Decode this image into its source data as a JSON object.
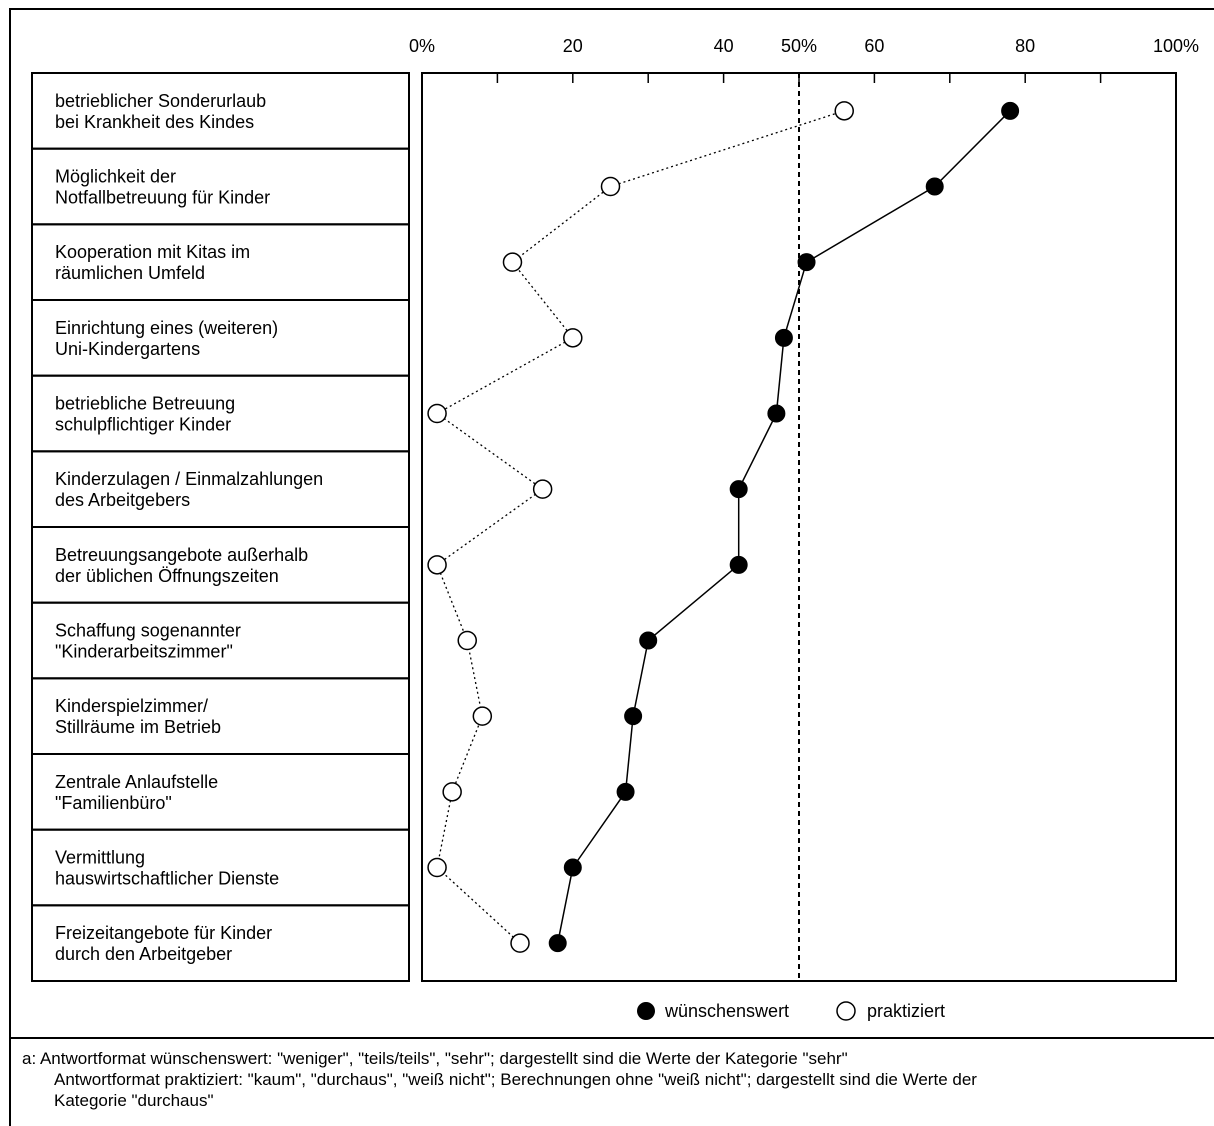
{
  "chart_data": {
    "type": "scatter",
    "x_ticks": [
      "0%",
      "20",
      "40",
      "50%",
      "60",
      "80",
      "100%"
    ],
    "x_tick_values": [
      0,
      20,
      40,
      50,
      60,
      80,
      100
    ],
    "x_minor_ticks": [
      10,
      30,
      70,
      90
    ],
    "xlim": [
      0,
      100
    ],
    "reference_line": 50,
    "categories": [
      [
        "betrieblicher Sonderurlaub",
        "bei Krankheit des Kindes"
      ],
      [
        "Möglichkeit der",
        "Notfallbetreuung für Kinder"
      ],
      [
        "Kooperation mit Kitas im",
        "räumlichen Umfeld"
      ],
      [
        "Einrichtung eines (weiteren)",
        "Uni-Kindergartens"
      ],
      [
        "betriebliche Betreuung",
        "schulpflichtiger Kinder"
      ],
      [
        "Kinderzulagen / Einmalzahlungen",
        "des Arbeitgebers"
      ],
      [
        "Betreuungsangebote außerhalb",
        "der üblichen Öffnungszeiten"
      ],
      [
        "Schaffung sogenannter",
        "\"Kinderarbeitszimmer\""
      ],
      [
        "Kinderspielzimmer/",
        "Stillräume im Betrieb"
      ],
      [
        "Zentrale Anlaufstelle",
        "\"Familienbüro\""
      ],
      [
        "Vermittlung",
        "hauswirtschaftlicher Dienste"
      ],
      [
        "Freizeitangebote für Kinder",
        "durch den Arbeitgeber"
      ]
    ],
    "series": [
      {
        "name": "wünschenswert",
        "marker": "filled-circle",
        "line": "solid",
        "values": [
          78,
          68,
          51,
          48,
          47,
          42,
          42,
          30,
          28,
          27,
          20,
          18
        ]
      },
      {
        "name": "praktiziert",
        "marker": "open-circle",
        "line": "dotted",
        "values": [
          56,
          25,
          12,
          20,
          2,
          16,
          2,
          6,
          8,
          4,
          2,
          13
        ]
      }
    ],
    "legend_position": "bottom-center"
  },
  "footnote": {
    "line1": "a: Antwortformat wünschenswert: \"weniger\", \"teils/teils\", \"sehr\"; dargestellt sind die Werte der Kategorie \"sehr\"",
    "line2": "Antwortformat praktiziert: \"kaum\", \"durchaus\", \"weiß nicht\"; Berechnungen ohne \"weiß nicht\"; dargestellt sind die Werte der",
    "line3": "Kategorie \"durchaus\""
  }
}
